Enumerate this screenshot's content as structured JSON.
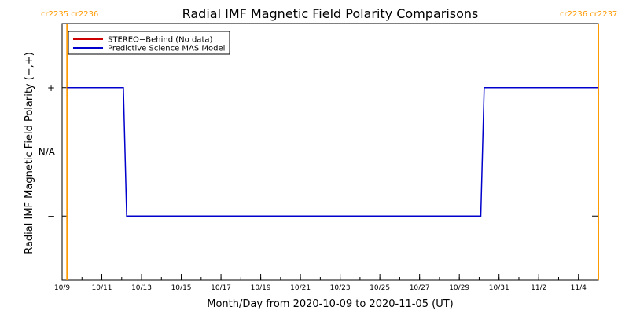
{
  "chart_data": {
    "type": "line",
    "title": "Radial IMF Magnetic Field Polarity Comparisons",
    "xlabel": "Month/Day from 2020-10-09 to 2020-11-05 (UT)",
    "ylabel": "Radial IMF Magnetic Field Polarity (−,+)",
    "xlim": [
      "2020-10-09",
      "2020-11-05"
    ],
    "x_ticks": [
      {
        "x": "2020-10-09",
        "label": "10/9"
      },
      {
        "x": "2020-10-11",
        "label": "10/11"
      },
      {
        "x": "2020-10-13",
        "label": "10/13"
      },
      {
        "x": "2020-10-15",
        "label": "10/15"
      },
      {
        "x": "2020-10-17",
        "label": "10/17"
      },
      {
        "x": "2020-10-19",
        "label": "10/19"
      },
      {
        "x": "2020-10-21",
        "label": "10/21"
      },
      {
        "x": "2020-10-23",
        "label": "10/23"
      },
      {
        "x": "2020-10-25",
        "label": "10/25"
      },
      {
        "x": "2020-10-27",
        "label": "10/27"
      },
      {
        "x": "2020-10-29",
        "label": "10/29"
      },
      {
        "x": "2020-10-31",
        "label": "10/31"
      },
      {
        "x": "2020-11-02",
        "label": "11/2"
      },
      {
        "x": "2020-11-04",
        "label": "11/4"
      }
    ],
    "y_ticks": [
      {
        "y": 1,
        "label": "+"
      },
      {
        "y": 0,
        "label": "N/A"
      },
      {
        "y": -1,
        "label": "−"
      }
    ],
    "ylim": [
      -2,
      2
    ],
    "legend": {
      "placement": "top-left"
    },
    "series": [
      {
        "name": "STEREO−Behind (No data)",
        "color": "#cc0000",
        "points": []
      },
      {
        "name": "Predictive Science MAS Model",
        "color": "#0000cc",
        "points": [
          {
            "x": "2020-10-09T06:00",
            "y": 1
          },
          {
            "x": "2020-10-12T02:00",
            "y": 1
          },
          {
            "x": "2020-10-12T06:00",
            "y": -1
          },
          {
            "x": "2020-10-30T02:00",
            "y": -1
          },
          {
            "x": "2020-10-30T06:00",
            "y": 1
          },
          {
            "x": "2020-11-05T00:00",
            "y": 1
          }
        ]
      }
    ],
    "carrington_markers": [
      {
        "x": "2020-10-09T06:00",
        "labels": [
          "cr2235",
          "cr2236"
        ],
        "color": "#ff9900"
      },
      {
        "x": "2020-11-05T00:00",
        "labels": [
          "cr2236",
          "cr2237"
        ],
        "color": "#ff9900"
      }
    ]
  }
}
